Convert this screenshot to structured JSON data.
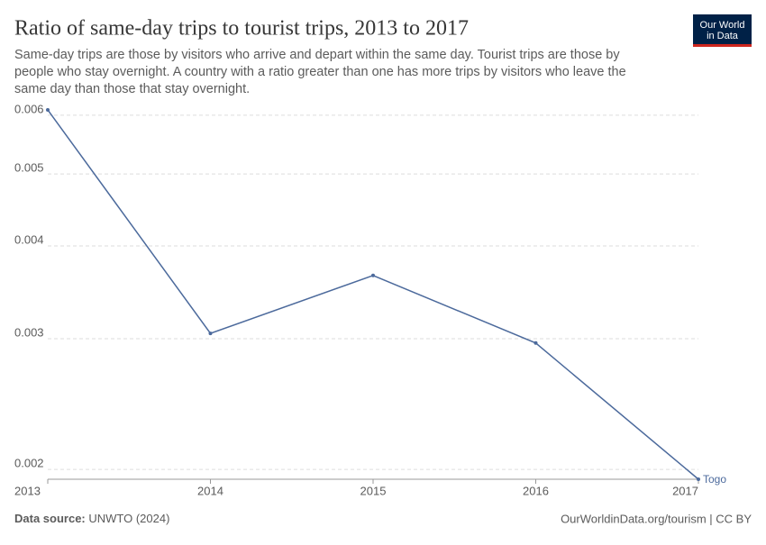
{
  "chart_data": {
    "type": "line",
    "title": "Ratio of same-day trips to tourist trips, 2013 to 2017",
    "subtitle": [
      "Same-day trips are those by visitors who arrive and depart within the same day. Tourist trips are those by",
      "people who stay overnight. A country with a ratio greater than one has more trips by visitors who leave the",
      "same day than those that stay overnight."
    ],
    "x": [
      2013,
      2014,
      2015,
      2016,
      2017
    ],
    "series": [
      {
        "name": "Togo",
        "color": "#4c6a9c",
        "values": [
          0.0061,
          0.00305,
          0.00365,
          0.00296,
          0.00194
        ]
      }
    ],
    "xlim": [
      2013,
      2017
    ],
    "xticks": [
      2013,
      2014,
      2015,
      2016,
      2017
    ],
    "ylim": [
      0.00194,
      0.0061
    ],
    "yticks": [
      0.002,
      0.003,
      0.004,
      0.005,
      0.006
    ],
    "log_y": true,
    "grid": true,
    "source_label": "Data source:",
    "source": "UNWTO (2024)",
    "credit": "OurWorldinData.org/tourism | CC BY",
    "logo": [
      "Our World",
      "in Data"
    ]
  }
}
